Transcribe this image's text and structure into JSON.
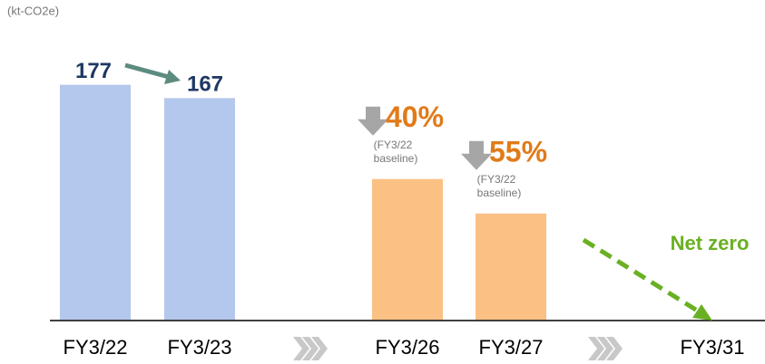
{
  "chart_data": {
    "type": "bar",
    "unit_label": "(kt-CO2e)",
    "categories": [
      "FY3/22",
      "FY3/23",
      "FY3/26",
      "FY3/27",
      "FY3/31"
    ],
    "values": [
      177,
      167,
      106,
      80,
      0
    ],
    "value_labels": [
      "177",
      "167",
      null,
      null,
      "Net zero"
    ],
    "colors": [
      "#b4c7ec",
      "#b4c7ec",
      "#fbc083",
      "#fbc083",
      "#6ab023"
    ],
    "annotations": [
      {
        "category": 2,
        "text": "40%",
        "note": [
          "(FY3/22",
          "baseline)"
        ]
      },
      {
        "category": 3,
        "text": "55%",
        "note": [
          "(FY3/22",
          "baseline)"
        ]
      }
    ],
    "ylim": [
      0,
      200
    ]
  }
}
